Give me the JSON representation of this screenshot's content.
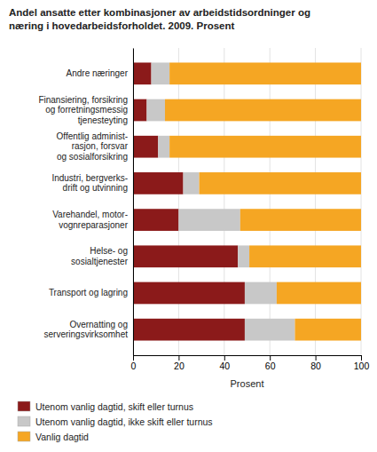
{
  "chart_data": {
    "type": "bar",
    "orientation": "horizontal",
    "stacked": true,
    "title": "Andel ansatte etter kombinasjoner av arbeidstidsordninger og\nnæring i hovedarbeidsforholdet. 2009. Prosent",
    "categories": [
      "Overnatting og\nserveringsvirksomhet",
      "Transport og lagring",
      "Helse- og\nsosialtjenester",
      "Varehandel, motor-\nvognreparasjoner",
      "Industri, bergverks-\ndrift og utvinning",
      "Offentlig administ-\nrasjon, forsvar\nog sosialforsikring",
      "Finansiering, forsikring\nog forretningsmessig\ntjenesteyting",
      "Andre næringer"
    ],
    "series": [
      {
        "name": "Utenom vanlig dagtid, skift eller turnus",
        "color": "#8B1A1A",
        "values": [
          49,
          49,
          46,
          20,
          22,
          11,
          6,
          8
        ]
      },
      {
        "name": "Utenom vanlig dagtid, ikke skift eller turnus",
        "color": "#C8C8C8",
        "values": [
          22,
          14,
          5,
          27,
          7,
          5,
          8,
          8
        ]
      },
      {
        "name": "Vanlig dagtid",
        "color": "#F5A623",
        "values": [
          29,
          37,
          49,
          53,
          71,
          84,
          86,
          84
        ]
      }
    ],
    "xlabel": "Prosent",
    "xlim": [
      0,
      100
    ],
    "xticks": [
      0,
      20,
      40,
      60,
      80,
      100
    ],
    "grid": true,
    "legend": "bottom"
  }
}
